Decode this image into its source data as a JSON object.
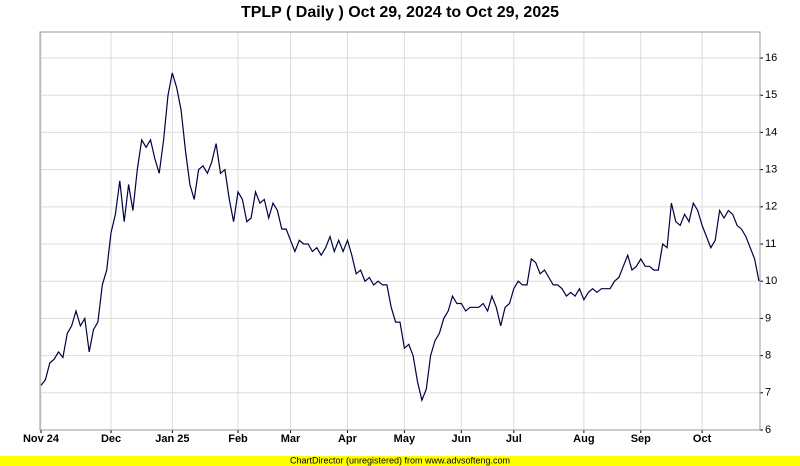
{
  "chart_data": {
    "type": "line",
    "title": "TPLP ( Daily ) Oct 29, 2024 to Oct 29, 2025",
    "footer": "ChartDirector (unregistered) from www.advsofteng.com",
    "categories": [
      "Nov 24",
      null,
      null,
      null,
      null,
      null,
      null,
      null,
      null,
      null,
      null,
      null,
      null,
      null,
      null,
      null,
      "Dec",
      null,
      null,
      null,
      null,
      null,
      null,
      null,
      null,
      null,
      null,
      null,
      null,
      null,
      "Jan 25",
      null,
      null,
      null,
      null,
      null,
      null,
      null,
      null,
      null,
      null,
      null,
      null,
      null,
      null,
      "Feb",
      null,
      null,
      null,
      null,
      null,
      null,
      null,
      null,
      null,
      null,
      null,
      "Mar",
      null,
      null,
      null,
      null,
      null,
      null,
      null,
      null,
      null,
      null,
      null,
      null,
      "Apr",
      null,
      null,
      null,
      null,
      null,
      null,
      null,
      null,
      null,
      null,
      null,
      null,
      "May",
      null,
      null,
      null,
      null,
      null,
      null,
      null,
      null,
      null,
      null,
      null,
      null,
      "Jun",
      null,
      null,
      null,
      null,
      null,
      null,
      null,
      null,
      null,
      null,
      null,
      "Jul",
      null,
      null,
      null,
      null,
      null,
      null,
      null,
      null,
      null,
      null,
      null,
      null,
      null,
      null,
      null,
      "Aug",
      null,
      null,
      null,
      null,
      null,
      null,
      null,
      null,
      null,
      null,
      null,
      null,
      "Sep",
      null,
      null,
      null,
      null,
      null,
      null,
      null,
      null,
      null,
      null,
      null,
      null,
      null,
      "Oct",
      null,
      null,
      null,
      null,
      null,
      null,
      null,
      null,
      null,
      null,
      null,
      null,
      null
    ],
    "series": [
      {
        "color": "#000044",
        "values": [
          7.2,
          7.35,
          7.8,
          7.9,
          8.1,
          7.95,
          8.6,
          8.8,
          9.2,
          8.8,
          9.0,
          8.1,
          8.7,
          8.9,
          9.9,
          10.3,
          11.3,
          11.8,
          12.7,
          11.6,
          12.6,
          11.9,
          13.0,
          13.8,
          13.6,
          13.8,
          13.3,
          12.9,
          13.8,
          15.0,
          15.6,
          15.2,
          14.6,
          13.5,
          12.6,
          12.2,
          13.0,
          13.1,
          12.9,
          13.2,
          13.7,
          12.9,
          13.0,
          12.2,
          11.6,
          12.4,
          12.2,
          11.6,
          11.7,
          12.4,
          12.1,
          12.2,
          11.7,
          12.1,
          11.9,
          11.4,
          11.4,
          11.1,
          10.8,
          11.1,
          11.0,
          11.0,
          10.8,
          10.9,
          10.7,
          10.9,
          11.2,
          10.8,
          11.1,
          10.8,
          11.1,
          10.7,
          10.2,
          10.3,
          10.0,
          10.1,
          9.9,
          10.0,
          9.9,
          9.9,
          9.3,
          8.9,
          8.9,
          8.2,
          8.3,
          8.0,
          7.3,
          6.8,
          7.1,
          8.0,
          8.4,
          8.6,
          9.0,
          9.2,
          9.6,
          9.4,
          9.4,
          9.2,
          9.3,
          9.3,
          9.3,
          9.4,
          9.2,
          9.6,
          9.3,
          8.8,
          9.3,
          9.4,
          9.8,
          10.0,
          9.9,
          9.9,
          10.6,
          10.5,
          10.2,
          10.3,
          10.1,
          9.9,
          9.9,
          9.8,
          9.6,
          9.7,
          9.6,
          9.8,
          9.5,
          9.7,
          9.8,
          9.7,
          9.8,
          9.8,
          9.8,
          10.0,
          10.1,
          10.4,
          10.7,
          10.3,
          10.4,
          10.6,
          10.4,
          10.4,
          10.3,
          10.3,
          11.0,
          10.9,
          12.1,
          11.6,
          11.5,
          11.8,
          11.6,
          12.1,
          11.9,
          11.5,
          11.2,
          10.9,
          11.1,
          11.9,
          11.7,
          11.9,
          11.8,
          11.5,
          11.4,
          11.2,
          10.9,
          10.6,
          10.0
        ]
      }
    ],
    "ylim": [
      6,
      16.7
    ],
    "yticks": [
      6,
      7,
      8,
      9,
      10,
      11,
      12,
      13,
      14,
      15,
      16
    ],
    "grid": true
  }
}
